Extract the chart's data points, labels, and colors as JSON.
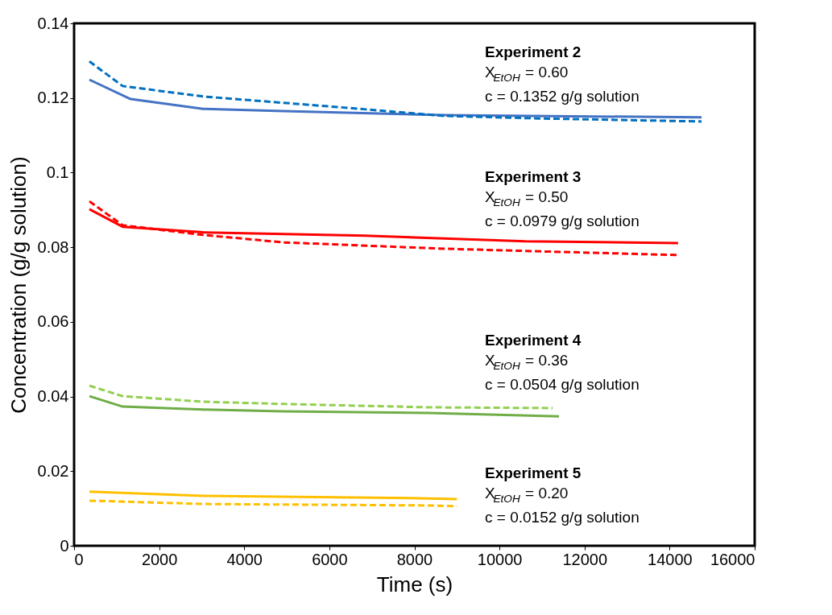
{
  "chart_data": {
    "type": "line",
    "xlabel": "Time (s)",
    "ylabel": "Concentration (g/g solution)",
    "xlim": [
      0,
      16000
    ],
    "ylim": [
      0,
      0.14
    ],
    "xticks": [
      0,
      2000,
      4000,
      6000,
      8000,
      10000,
      12000,
      14000,
      16000
    ],
    "yticks": [
      0,
      0.02,
      0.04,
      0.06,
      0.08,
      0.1,
      0.12,
      0.14
    ],
    "grid": false,
    "marker": "none",
    "series": [
      {
        "color": "#4472c4",
        "line_style": "solid",
        "x": [
          360,
          1330,
          3030,
          4920,
          8700,
          14750
        ],
        "values": [
          0.1249,
          0.1197,
          0.1171,
          0.1165,
          0.1154,
          0.1148
        ]
      },
      {
        "color": "#0070c0",
        "line_style": "dashed",
        "x": [
          360,
          1140,
          3030,
          4920,
          6820,
          8700,
          11000,
          14750
        ],
        "values": [
          0.1298,
          0.1232,
          0.1204,
          0.1187,
          0.117,
          0.1152,
          0.1145,
          0.1137
        ]
      },
      {
        "color": "#ff0000",
        "line_style": "solid",
        "x": [
          360,
          1140,
          3030,
          6820,
          10600,
          14200
        ],
        "values": [
          0.0902,
          0.0855,
          0.084,
          0.0831,
          0.0816,
          0.0811
        ]
      },
      {
        "color": "#ff0000",
        "line_style": "dashed",
        "x": [
          360,
          1140,
          3030,
          4920,
          8700,
          14200
        ],
        "values": [
          0.0923,
          0.0859,
          0.0833,
          0.0813,
          0.0796,
          0.0779
        ]
      },
      {
        "color": "#70ad47",
        "line_style": "solid",
        "x": [
          360,
          1140,
          3030,
          4920,
          8330,
          11400
        ],
        "values": [
          0.0401,
          0.0373,
          0.0365,
          0.036,
          0.0356,
          0.0347
        ]
      },
      {
        "color": "#92d050",
        "line_style": "dashed",
        "x": [
          360,
          1140,
          3030,
          4920,
          8330,
          11250
        ],
        "values": [
          0.0429,
          0.0401,
          0.0386,
          0.038,
          0.0371,
          0.0369
        ]
      },
      {
        "color": "#ffc000",
        "line_style": "solid",
        "x": [
          360,
          3030,
          8330,
          9000
        ],
        "values": [
          0.0145,
          0.0134,
          0.0127,
          0.0125
        ]
      },
      {
        "color": "#ffc000",
        "line_style": "dashed",
        "x": [
          360,
          3030,
          8330,
          9000
        ],
        "values": [
          0.0121,
          0.0112,
          0.0108,
          0.0106
        ]
      }
    ],
    "annotations": [
      "Experiment 2",
      "X$_{EtOH}$ = 0.60",
      "c = 0.1352 g/g solution",
      "Experiment 3",
      "X$_{EtOH}$ = 0.50",
      "c = 0.0979 g/g solution",
      "Experiment 4",
      "X$_{EtOH}$ = 0.36",
      "c = 0.0504 g/g solution",
      "Experiment 5",
      "X$_{EtOH}$ = 0.20",
      "c = 0.0152 g/g solution"
    ]
  }
}
